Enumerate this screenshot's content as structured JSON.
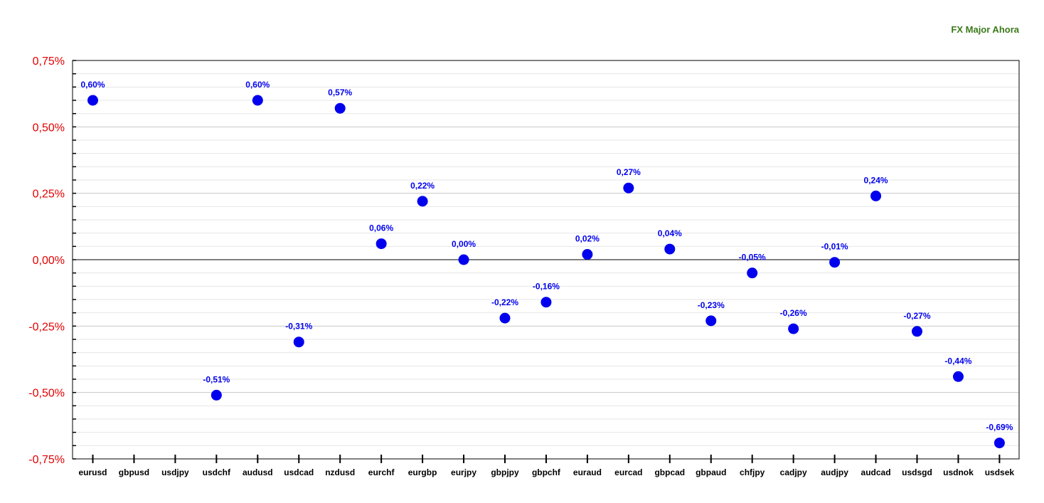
{
  "chart_data": {
    "type": "scatter",
    "title": "FX Major Ahora",
    "xlabel": "",
    "ylabel": "",
    "ylim": [
      -0.75,
      0.75
    ],
    "yticks": [
      0.75,
      0.5,
      0.25,
      0.0,
      -0.25,
      -0.5,
      -0.75
    ],
    "ytick_labels": [
      "0,75%",
      "0,50%",
      "0,25%",
      "0,00%",
      "-0,25%",
      "-0,50%",
      "-0,75%"
    ],
    "grid": true,
    "legend": "none",
    "point_color": "#0000ee",
    "categories": [
      "eurusd",
      "gbpusd",
      "usdjpy",
      "usdchf",
      "audusd",
      "usdcad",
      "nzdusd",
      "eurchf",
      "eurgbp",
      "eurjpy",
      "gbpjpy",
      "gbpchf",
      "euraud",
      "eurcad",
      "gbpcad",
      "gbpaud",
      "chfjpy",
      "cadjpy",
      "audjpy",
      "audcad",
      "usdsgd",
      "usdnok",
      "usdsek"
    ],
    "values": [
      0.6,
      null,
      null,
      -0.51,
      0.6,
      -0.31,
      0.57,
      0.06,
      0.22,
      0.0,
      -0.22,
      -0.16,
      0.02,
      0.27,
      0.04,
      -0.23,
      -0.05,
      -0.26,
      -0.01,
      0.24,
      -0.27,
      -0.44,
      -0.69
    ],
    "value_labels": [
      "0,60%",
      null,
      null,
      "-0,51%",
      "0,60%",
      "-0,31%",
      "0,57%",
      "0,06%",
      "0,22%",
      "0,00%",
      "-0,22%",
      "-0,16%",
      "0,02%",
      "0,27%",
      "0,04%",
      "-0,23%",
      "-0,05%",
      "-0,26%",
      "-0,01%",
      "0,24%",
      "-0,27%",
      "-0,44%",
      "-0,69%"
    ]
  }
}
